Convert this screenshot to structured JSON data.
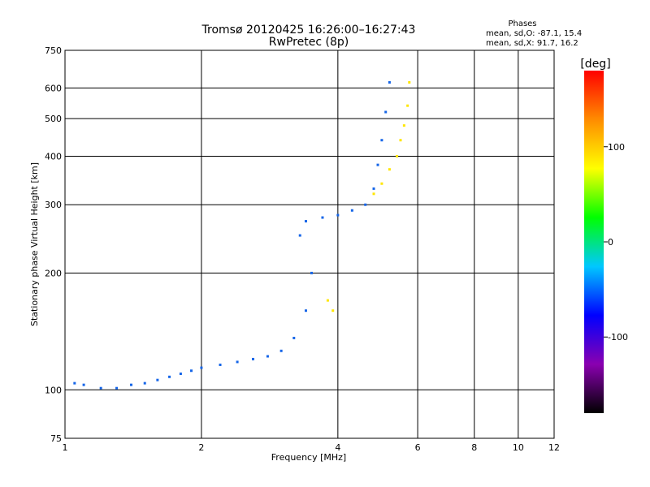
{
  "chart_data": {
    "type": "scatter",
    "title": "Tromsø 20120425 16:26:00–16:27:43",
    "subtitle": "RwPretec (8p)",
    "xlabel": "Frequency [MHz]",
    "ylabel": "Stationary phase Virtual Height [km]",
    "x_scale": "log",
    "y_scale": "log",
    "xlim": [
      1,
      12
    ],
    "ylim": [
      75,
      750
    ],
    "x_ticks": [
      1,
      2,
      4,
      6,
      8,
      10,
      12
    ],
    "y_ticks": [
      75,
      100,
      200,
      300,
      400,
      500,
      600,
      750
    ],
    "grid": true,
    "phase_info": {
      "title": "Phases",
      "line1": "mean, sd,O:  -87.1, 15.4",
      "line2": "mean, sd,X:  91.7, 16.2"
    },
    "colorbar": {
      "label": "[deg]",
      "range": [
        -180,
        180
      ],
      "ticks": [
        100,
        0,
        -100
      ],
      "colormap": [
        "#000000",
        "#8a00b0",
        "#0000ff",
        "#00c8ff",
        "#00ff00",
        "#ffff00",
        "#ff8c00",
        "#ff0000"
      ]
    },
    "series": [
      {
        "color_group": "O-mode (~-90 deg)",
        "points": [
          [
            1.05,
            104
          ],
          [
            1.1,
            103
          ],
          [
            1.2,
            101
          ],
          [
            1.3,
            101
          ],
          [
            1.4,
            103
          ],
          [
            1.5,
            104
          ],
          [
            1.6,
            106
          ],
          [
            1.7,
            108
          ],
          [
            1.8,
            110
          ],
          [
            1.9,
            112
          ],
          [
            2.0,
            114
          ],
          [
            2.2,
            116
          ],
          [
            2.4,
            118
          ],
          [
            2.6,
            120
          ],
          [
            2.8,
            122
          ],
          [
            3.0,
            126
          ],
          [
            3.2,
            136
          ],
          [
            3.4,
            160
          ],
          [
            3.5,
            200
          ],
          [
            3.3,
            250
          ],
          [
            3.4,
            272
          ],
          [
            3.7,
            278
          ],
          [
            4.0,
            282
          ],
          [
            4.3,
            290
          ],
          [
            4.6,
            300
          ],
          [
            4.8,
            330
          ],
          [
            4.9,
            380
          ],
          [
            5.0,
            440
          ],
          [
            5.1,
            520
          ],
          [
            5.2,
            620
          ]
        ]
      },
      {
        "color_group": "X-mode (~+90 deg)",
        "points": [
          [
            3.8,
            170
          ],
          [
            3.9,
            160
          ],
          [
            4.8,
            320
          ],
          [
            5.0,
            340
          ],
          [
            5.2,
            370
          ],
          [
            5.4,
            400
          ],
          [
            5.5,
            440
          ],
          [
            5.6,
            480
          ],
          [
            5.7,
            540
          ],
          [
            5.75,
            620
          ]
        ]
      }
    ]
  }
}
